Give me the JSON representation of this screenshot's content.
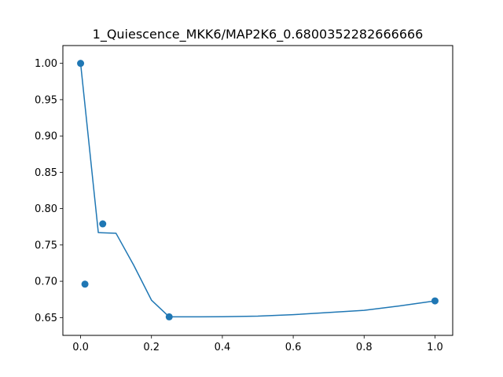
{
  "chart_data": {
    "type": "scatter",
    "title": "1_Quiescence_MKK6/MAP2K6_0.6800352282666666",
    "xlabel": "",
    "ylabel": "",
    "xlim": [
      -0.05,
      1.05
    ],
    "ylim": [
      0.6255,
      1.0245
    ],
    "x_ticks": [
      0.0,
      0.2,
      0.4,
      0.6,
      0.8,
      1.0
    ],
    "x_tick_labels": [
      "0.0",
      "0.2",
      "0.4",
      "0.6",
      "0.8",
      "1.0"
    ],
    "y_ticks": [
      0.65,
      0.7,
      0.75,
      0.8,
      0.85,
      0.9,
      0.95,
      1.0
    ],
    "y_tick_labels": [
      "0.65",
      "0.70",
      "0.75",
      "0.80",
      "0.85",
      "0.90",
      "0.95",
      "1.00"
    ],
    "grid": false,
    "color": "#1f77b4",
    "series": [
      {
        "type": "scatter",
        "points": [
          {
            "x": 0.0,
            "y": 1.0
          },
          {
            "x": 0.0123,
            "y": 0.696
          },
          {
            "x": 0.0625,
            "y": 0.779
          },
          {
            "x": 0.25,
            "y": 0.651
          },
          {
            "x": 1.0,
            "y": 0.673
          }
        ]
      },
      {
        "type": "line",
        "points": [
          {
            "x": 0.0,
            "y": 1.0
          },
          {
            "x": 0.05,
            "y": 0.767
          },
          {
            "x": 0.1,
            "y": 0.766
          },
          {
            "x": 0.15,
            "y": 0.722
          },
          {
            "x": 0.2,
            "y": 0.674
          },
          {
            "x": 0.25,
            "y": 0.651
          },
          {
            "x": 0.3,
            "y": 0.651
          },
          {
            "x": 0.4,
            "y": 0.6512
          },
          {
            "x": 0.5,
            "y": 0.652
          },
          {
            "x": 0.6,
            "y": 0.654
          },
          {
            "x": 0.7,
            "y": 0.657
          },
          {
            "x": 0.8,
            "y": 0.66
          },
          {
            "x": 0.9,
            "y": 0.666
          },
          {
            "x": 1.0,
            "y": 0.673
          }
        ]
      }
    ]
  }
}
